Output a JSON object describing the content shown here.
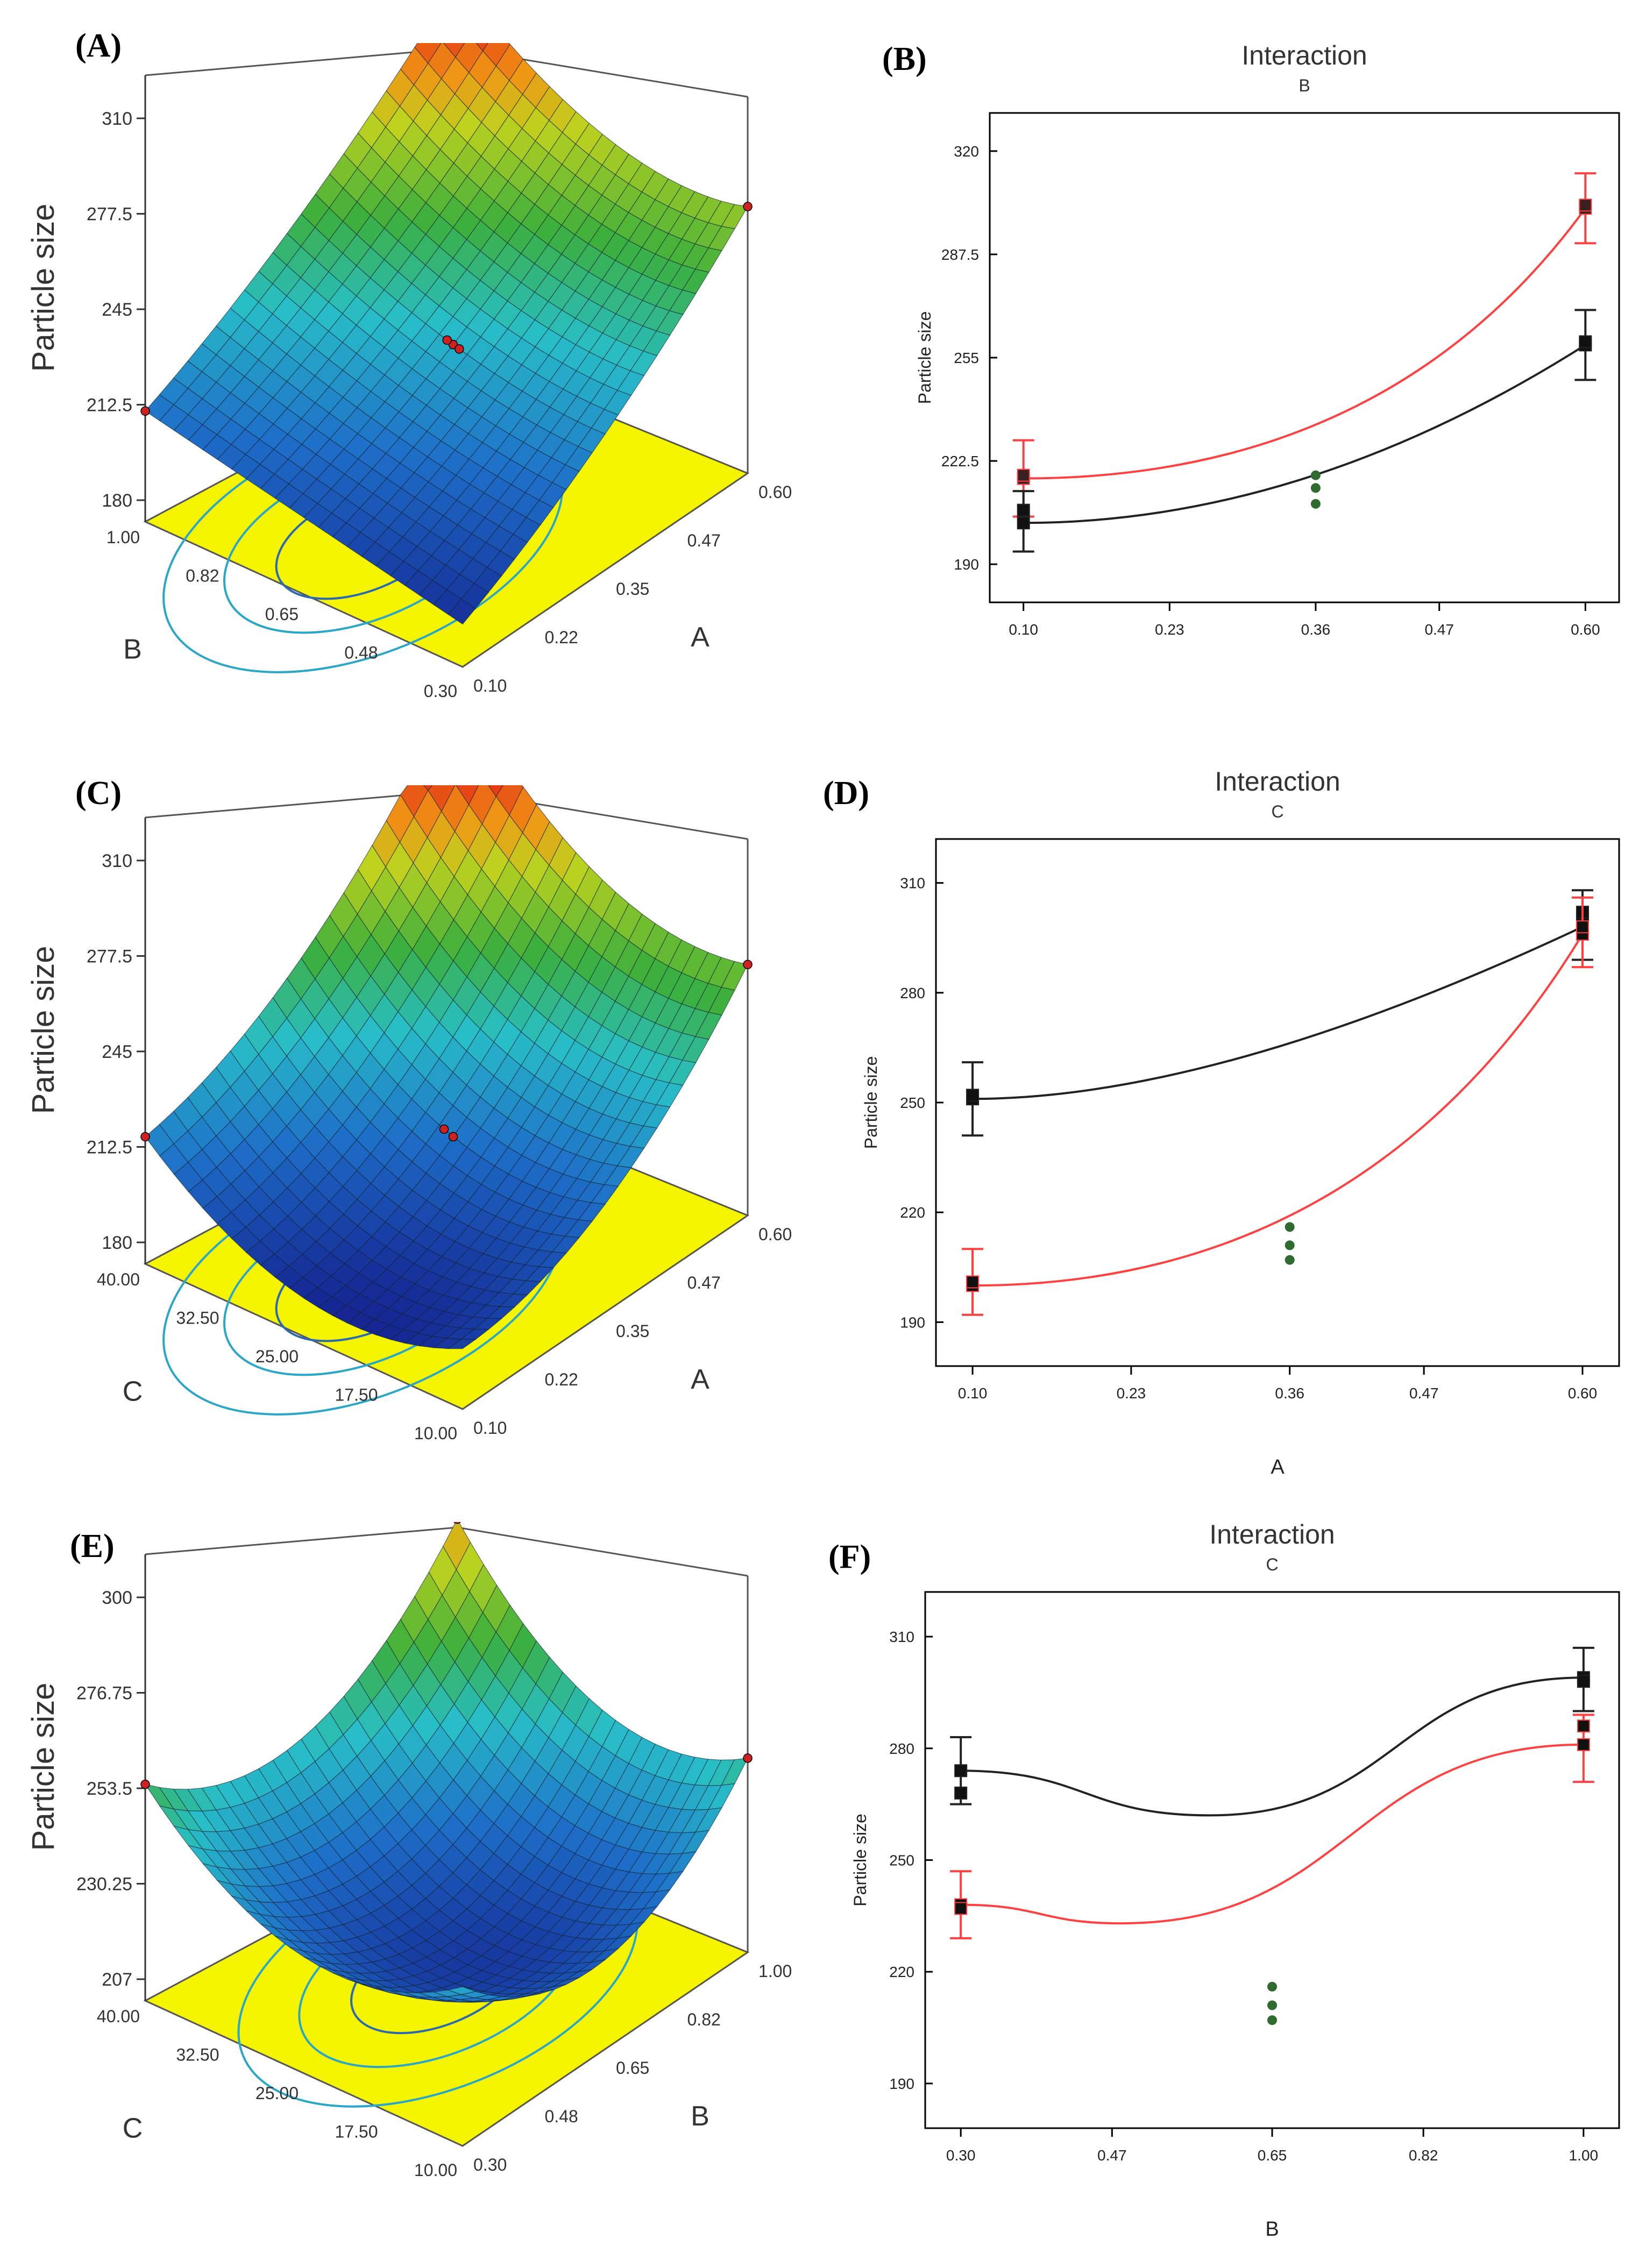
{
  "panel_labels": {
    "a": "(A)",
    "b": "(B)",
    "c": "(C)",
    "d": "(D)",
    "e": "(E)",
    "f": "(F)"
  },
  "colors": {
    "red": "#ff4040",
    "black": "#222222",
    "green": "#2e6b2e",
    "contour": "#2aa7c8",
    "contour_fill": "#f5f500"
  },
  "chart_data": [
    {
      "id": "A",
      "type": "surface3d",
      "zlabel": "Particle size",
      "zticks": [
        "310",
        "277.5",
        "245",
        "212.5",
        "180"
      ],
      "left_axis": {
        "label": "B",
        "ticks": [
          "1.00",
          "0.82",
          "0.65",
          "0.48",
          "0.30"
        ]
      },
      "right_axis": {
        "label": "A",
        "ticks": [
          "0.10",
          "0.22",
          "0.35",
          "0.47",
          "0.60"
        ]
      }
    },
    {
      "id": "B",
      "type": "line",
      "title": "Interaction",
      "subtitle": "B",
      "ylabel": "Particle size",
      "xlabel": "",
      "x_ticks": [
        0.1,
        0.23,
        0.36,
        0.47,
        0.6
      ],
      "x_tick_labels": [
        "0.10",
        "0.23",
        "0.36",
        "0.47",
        "0.60"
      ],
      "y_ticks": [
        190,
        222.5,
        255,
        287.5,
        320
      ],
      "y_tick_labels": [
        "190",
        "222.5",
        "255",
        "287.5",
        "320"
      ],
      "xlim": [
        0.07,
        0.63
      ],
      "ylim": [
        178,
        332
      ],
      "series": [
        {
          "color": "red",
          "curve": [
            [
              0.1,
              217
            ],
            [
              0.6,
              302
            ]
          ],
          "curvature": 0.35,
          "points": [
            [
              0.1,
              217
            ],
            [
              0.1,
              218
            ],
            [
              0.6,
              302
            ],
            [
              0.6,
              303
            ]
          ],
          "errorbars": [
            [
              0.1,
              205,
              229
            ],
            [
              0.6,
              291,
              313
            ]
          ]
        },
        {
          "color": "black",
          "curve": [
            [
              0.1,
              203
            ],
            [
              0.6,
              259
            ]
          ],
          "curvature": 0.5,
          "points": [
            [
              0.1,
              203
            ],
            [
              0.1,
              207
            ],
            [
              0.6,
              259
            ],
            [
              0.6,
              260
            ]
          ],
          "errorbars": [
            [
              0.1,
              194,
              213
            ],
            [
              0.6,
              248,
              270
            ]
          ]
        }
      ],
      "center_points": [
        [
          0.36,
          218
        ],
        [
          0.36,
          214
        ],
        [
          0.36,
          209
        ]
      ]
    },
    {
      "id": "C",
      "type": "surface3d",
      "zlabel": "Particle size",
      "zticks": [
        "310",
        "277.5",
        "245",
        "212.5",
        "180"
      ],
      "left_axis": {
        "label": "C",
        "ticks": [
          "40.00",
          "32.50",
          "25.00",
          "17.50",
          "10.00"
        ]
      },
      "right_axis": {
        "label": "A",
        "ticks": [
          "0.10",
          "0.22",
          "0.35",
          "0.47",
          "0.60"
        ]
      }
    },
    {
      "id": "D",
      "type": "line",
      "title": "Interaction",
      "subtitle": "C",
      "ylabel": "Particle size",
      "xlabel": "A",
      "x_ticks": [
        0.1,
        0.23,
        0.36,
        0.47,
        0.6
      ],
      "x_tick_labels": [
        "0.10",
        "0.23",
        "0.36",
        "0.47",
        "0.60"
      ],
      "y_ticks": [
        190,
        220,
        250,
        280,
        310
      ],
      "y_tick_labels": [
        "190",
        "220",
        "250",
        "280",
        "310"
      ],
      "xlim": [
        0.07,
        0.63
      ],
      "ylim": [
        178,
        322
      ],
      "series": [
        {
          "color": "black",
          "curve": [
            [
              0.1,
              251
            ],
            [
              0.6,
              298
            ]
          ],
          "curvature": 0.6,
          "points": [
            [
              0.1,
              251
            ],
            [
              0.1,
              252
            ],
            [
              0.6,
              300
            ],
            [
              0.6,
              302
            ]
          ],
          "errorbars": [
            [
              0.1,
              241,
              261
            ],
            [
              0.6,
              289,
              308
            ]
          ]
        },
        {
          "color": "red",
          "curve": [
            [
              0.1,
              200
            ],
            [
              0.6,
              296
            ]
          ],
          "curvature": 0.35,
          "points": [
            [
              0.1,
              200
            ],
            [
              0.1,
              201
            ],
            [
              0.6,
              296
            ],
            [
              0.6,
              298
            ]
          ],
          "errorbars": [
            [
              0.1,
              192,
              210
            ],
            [
              0.6,
              287,
              306
            ]
          ]
        }
      ],
      "center_points": [
        [
          0.36,
          216
        ],
        [
          0.36,
          211
        ],
        [
          0.36,
          207
        ]
      ]
    },
    {
      "id": "E",
      "type": "surface3d",
      "zlabel": "Particle size",
      "zticks": [
        "300",
        "276.75",
        "253.5",
        "230.25",
        "207"
      ],
      "left_axis": {
        "label": "C",
        "ticks": [
          "40.00",
          "32.50",
          "25.00",
          "17.50",
          "10.00"
        ]
      },
      "right_axis": {
        "label": "B",
        "ticks": [
          "0.30",
          "0.48",
          "0.65",
          "0.82",
          "1.00"
        ]
      }
    },
    {
      "id": "F",
      "type": "line",
      "title": "Interaction",
      "subtitle": "C",
      "ylabel": "Particle size",
      "xlabel": "B",
      "x_ticks": [
        0.3,
        0.47,
        0.65,
        0.82,
        1.0
      ],
      "x_tick_labels": [
        "0.30",
        "0.47",
        "0.65",
        "0.82",
        "1.00"
      ],
      "y_ticks": [
        190,
        220,
        250,
        280,
        310
      ],
      "y_tick_labels": [
        "190",
        "220",
        "250",
        "280",
        "310"
      ],
      "xlim": [
        0.26,
        1.04
      ],
      "ylim": [
        178,
        322
      ],
      "series": [
        {
          "color": "black",
          "curve": [
            [
              0.3,
              274
            ],
            [
              0.58,
              262
            ],
            [
              1.0,
              299
            ]
          ],
          "points": [
            [
              0.3,
              274
            ],
            [
              0.3,
              268
            ],
            [
              1.0,
              299
            ],
            [
              1.0,
              298
            ]
          ],
          "errorbars": [
            [
              0.3,
              265,
              283
            ],
            [
              1.0,
              290,
              307
            ]
          ]
        },
        {
          "color": "red",
          "curve": [
            [
              0.3,
              238
            ],
            [
              0.48,
              233
            ],
            [
              1.0,
              281
            ]
          ],
          "points": [
            [
              0.3,
              238
            ],
            [
              0.3,
              237
            ],
            [
              1.0,
              281
            ],
            [
              1.0,
              286
            ]
          ],
          "errorbars": [
            [
              0.3,
              229,
              247
            ],
            [
              1.0,
              271,
              289
            ]
          ]
        }
      ],
      "center_points": [
        [
          0.65,
          216
        ],
        [
          0.65,
          211
        ],
        [
          0.65,
          207
        ]
      ]
    }
  ]
}
